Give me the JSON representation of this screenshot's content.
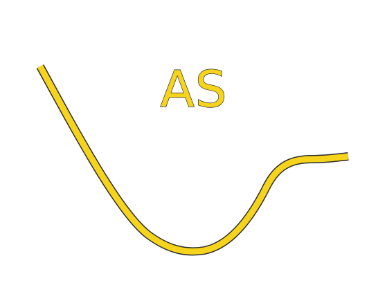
{
  "figure": {
    "label": "AS",
    "colors": {
      "fill": "#f6d41c",
      "outline": "#2b2b2b",
      "background": "#ffffff"
    }
  }
}
